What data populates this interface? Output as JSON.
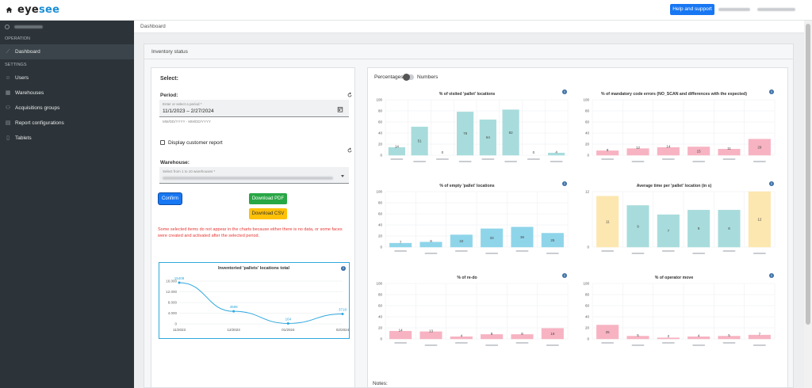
{
  "app": {
    "logo_left": "eye",
    "logo_right": "see"
  },
  "topbar": {
    "help_label": "Help and support"
  },
  "sidebar": {
    "section_operation": "OPERATION",
    "section_settings": "SETTINGS",
    "items": [
      {
        "label": "Dashboard",
        "icon": "chart-line-icon",
        "active": true
      },
      {
        "label": "Users",
        "icon": "user-icon"
      },
      {
        "label": "Warehouses",
        "icon": "warehouse-icon"
      },
      {
        "label": "Acquisitions groups",
        "icon": "users-icon"
      },
      {
        "label": "Report configurations",
        "icon": "report-icon"
      },
      {
        "label": "Tablets",
        "icon": "tablet-icon"
      }
    ]
  },
  "breadcrumb": "Dashboard",
  "card": {
    "title": "Inventory status"
  },
  "form": {
    "select_label": "Select:",
    "period_label": "Period:",
    "period_placeholder": "Enter or select a period *",
    "period_value": "11/1/2023 – 2/27/2024",
    "period_hint": "MM/DD/YYYY - MM/DD/YYYY",
    "display_customer_report": "Display customer report",
    "warehouse_label": "Warehouse:",
    "warehouse_placeholder": "Select from 1 to 10 warehouses *",
    "confirm": "Confirm",
    "download_pdf": "Download PDF",
    "download_csv": "Download CSV",
    "warning": "Some selected items do not appear in the charts because either there is no data, or some faces were created and activated after the selected period."
  },
  "toggle": {
    "left": "Percentages",
    "right": "Numbers"
  },
  "notes_label": "Notes:",
  "chart_data": [
    {
      "type": "line",
      "title": "Inventoried 'pallets' locations total",
      "categories": [
        "11/2023",
        "12/2023",
        "01/2024",
        "02/2024"
      ],
      "values": [
        15408,
        4689,
        164,
        3718
      ],
      "ylim": [
        0,
        16000
      ],
      "yticks": [
        "0",
        "4.000",
        "8.000",
        "12.000",
        "16.000"
      ],
      "color": "#2ea8df"
    },
    {
      "type": "bar",
      "title": "% of visited 'pallet' locations",
      "values": [
        14,
        51,
        0,
        78,
        64,
        82,
        0,
        4
      ],
      "ylim": [
        0,
        100
      ],
      "yticks": [
        "0",
        "20",
        "40",
        "60",
        "80",
        "100"
      ],
      "color": "#a8dcdc"
    },
    {
      "type": "bar",
      "title": "% of mandatory code errors (NO_SCAN and differences with the expected)",
      "values": [
        8,
        12,
        14,
        15,
        11,
        29
      ],
      "ylim": [
        0,
        100
      ],
      "yticks": [
        "0",
        "20",
        "40",
        "60",
        "80",
        "100"
      ],
      "color": "#f7b3c2"
    },
    {
      "type": "bar",
      "title": "% of empty 'pallet' locations",
      "values": [
        7,
        9,
        22,
        33,
        36,
        25
      ],
      "ylim": [
        0,
        100
      ],
      "yticks": [
        "0",
        "20",
        "40",
        "60",
        "80",
        "100"
      ],
      "color": "#8fd5ea"
    },
    {
      "type": "bar",
      "title": "Average time per 'pallet' location (in s)",
      "values": [
        11,
        9,
        7,
        8,
        8,
        12
      ],
      "colors": [
        "#fde7b0",
        "#a8dcdc",
        "#a8dcdc",
        "#a8dcdc",
        "#a8dcdc",
        "#fde7b0"
      ],
      "ylim": [
        0,
        12
      ],
      "yticks": [
        "0",
        "12"
      ]
    },
    {
      "type": "bar",
      "title": "% of re-do",
      "values": [
        14,
        13,
        4,
        8,
        8,
        19
      ],
      "ylim": [
        0,
        100
      ],
      "yticks": [
        "0",
        "20",
        "40",
        "60",
        "80",
        "100"
      ],
      "color": "#f7b3c2"
    },
    {
      "type": "bar",
      "title": "% of operator move",
      "values": [
        25,
        5,
        2,
        4,
        5,
        7
      ],
      "ylim": [
        0,
        100
      ],
      "yticks": [
        "0",
        "20",
        "40",
        "60",
        "80",
        "100"
      ],
      "color": "#f7b3c2"
    }
  ]
}
